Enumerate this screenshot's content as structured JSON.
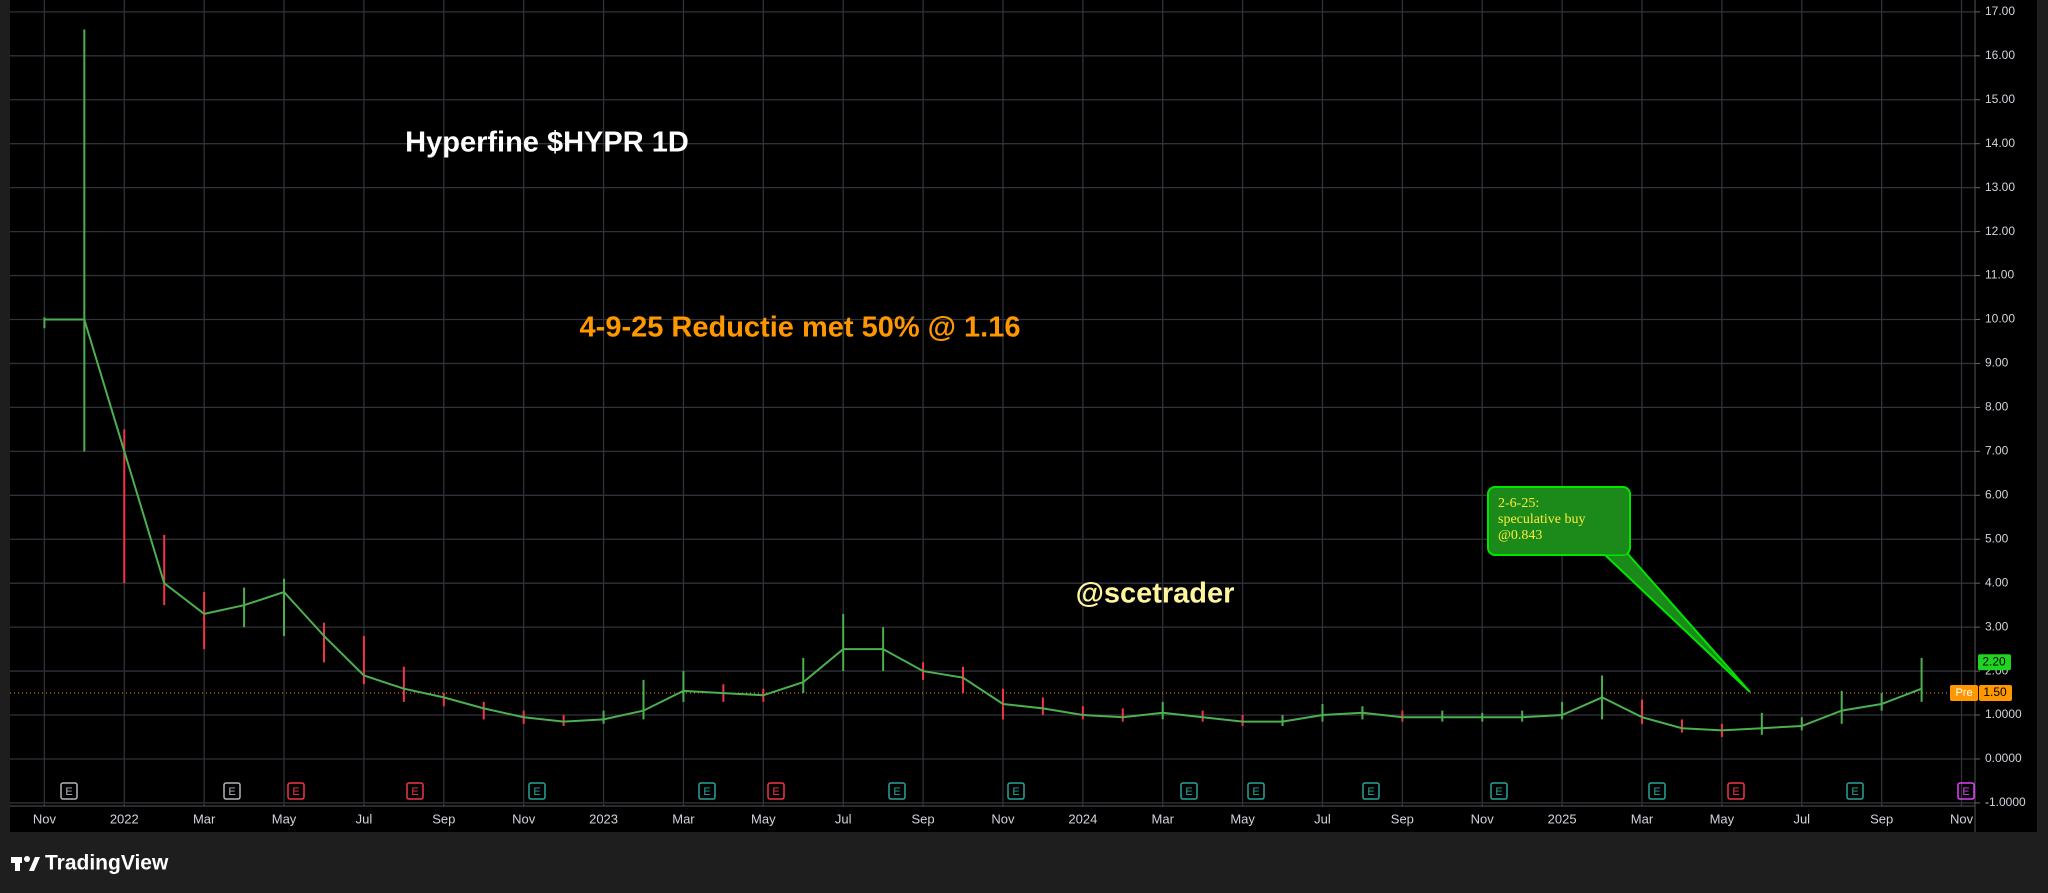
{
  "brand": "TradingView",
  "chart_data": {
    "type": "line",
    "title": "Hyperfine $HYPR 1D",
    "annotations": [
      "4-9-25 Reductie met 50% @ 1.16",
      "@scetrader"
    ],
    "callout": [
      "2-6-25:",
      "speculative buy",
      "@0.843"
    ],
    "event_marker": "E",
    "categories": [
      "Nov",
      null,
      "2022",
      null,
      "Mar",
      null,
      "May",
      null,
      "Jul",
      null,
      "Sep",
      null,
      "Nov",
      null,
      "2023",
      null,
      "Mar",
      null,
      "May",
      null,
      "Jul",
      null,
      "Sep",
      null,
      "Nov",
      null,
      "2024",
      null,
      "Mar",
      null,
      "May",
      null,
      "Jul",
      null,
      "Sep",
      null,
      "Nov",
      null,
      "2025",
      null,
      "Mar",
      null,
      "May",
      null,
      "Jul",
      null,
      "Sep",
      null,
      "Nov"
    ],
    "values": [
      10.0,
      10.0,
      7.0,
      4.0,
      3.3,
      3.5,
      3.8,
      2.8,
      1.9,
      1.6,
      1.4,
      1.15,
      0.95,
      0.85,
      0.9,
      1.1,
      1.55,
      1.5,
      1.45,
      1.75,
      2.5,
      2.5,
      2.0,
      1.85,
      1.25,
      1.15,
      1.0,
      0.95,
      1.05,
      0.95,
      0.85,
      0.85,
      1.0,
      1.05,
      0.95,
      0.95,
      0.95,
      0.95,
      1.0,
      1.4,
      0.95,
      0.7,
      0.65,
      0.7,
      0.75,
      1.1,
      1.25,
      1.6,
      null
    ],
    "highs": [
      10.05,
      16.6,
      7.5,
      5.1,
      3.8,
      3.9,
      4.1,
      3.1,
      2.8,
      2.1,
      1.5,
      1.3,
      1.1,
      1.0,
      1.1,
      1.8,
      2.0,
      1.7,
      1.6,
      2.3,
      3.3,
      3.0,
      2.2,
      2.1,
      1.6,
      1.4,
      1.2,
      1.15,
      1.3,
      1.1,
      1.0,
      1.0,
      1.25,
      1.2,
      1.1,
      1.1,
      1.05,
      1.1,
      1.3,
      1.9,
      1.35,
      0.9,
      0.8,
      1.05,
      0.95,
      1.55,
      1.5,
      2.3,
      null
    ],
    "lows": [
      9.8,
      7.0,
      4.0,
      3.5,
      2.5,
      3.0,
      2.8,
      2.2,
      1.7,
      1.3,
      1.2,
      0.9,
      0.8,
      0.75,
      0.8,
      0.9,
      1.3,
      1.3,
      1.3,
      1.5,
      2.0,
      2.0,
      1.8,
      1.5,
      0.9,
      1.0,
      0.9,
      0.85,
      0.9,
      0.85,
      0.75,
      0.75,
      0.85,
      0.9,
      0.85,
      0.85,
      0.85,
      0.85,
      0.9,
      0.9,
      0.8,
      0.6,
      0.5,
      0.55,
      0.65,
      0.8,
      1.1,
      1.3,
      null
    ],
    "color": "#4caf50",
    "up_color": "#4caf50",
    "down_color": "#f23645",
    "ylim": [
      -1.07,
      17.27
    ],
    "yticks": [
      {
        "value": 17,
        "label": "17.00"
      },
      {
        "value": 16,
        "label": "16.00"
      },
      {
        "value": 15,
        "label": "15.00"
      },
      {
        "value": 14,
        "label": "14.00"
      },
      {
        "value": 13,
        "label": "13.00"
      },
      {
        "value": 12,
        "label": "12.00"
      },
      {
        "value": 11,
        "label": "11.00"
      },
      {
        "value": 10,
        "label": "10.00"
      },
      {
        "value": 9,
        "label": "9.00"
      },
      {
        "value": 8,
        "label": "8.00"
      },
      {
        "value": 7,
        "label": "7.00"
      },
      {
        "value": 6,
        "label": "6.00"
      },
      {
        "value": 5,
        "label": "5.00"
      },
      {
        "value": 4,
        "label": "4.00"
      },
      {
        "value": 3,
        "label": "3.00"
      },
      {
        "value": 2,
        "label": "2.00"
      },
      {
        "value": 1,
        "label": "1.0000"
      },
      {
        "value": 0,
        "label": "0.0000"
      },
      {
        "value": -1,
        "label": "-1.0000"
      }
    ],
    "grid": true,
    "last_price": 2.2,
    "last_price_label": "2.20",
    "premarket_label": "Pre",
    "premarket_price": 1.5,
    "premarket_price_label": "1.50"
  }
}
